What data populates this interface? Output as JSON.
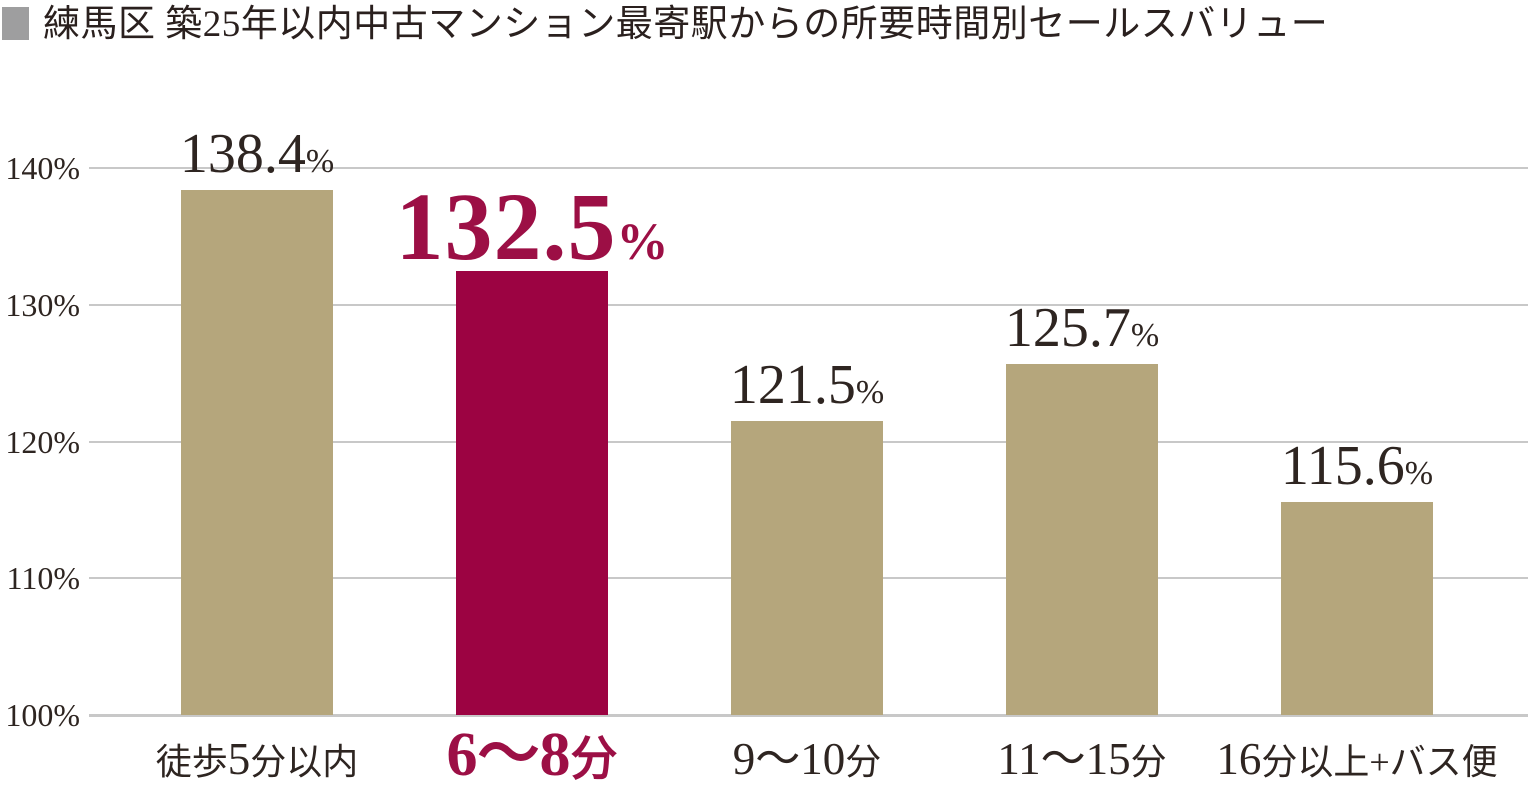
{
  "colors": {
    "bar_default": "#b5a67c",
    "bar_highlight": "#9c0342",
    "text_highlight": "#9c0f45",
    "text_dark": "#2e2521",
    "gridline": "#c8c8c8",
    "title_bullet": "#9e9e9f"
  },
  "chart_data": {
    "type": "bar",
    "title": "練馬区 築25年以内中古マンション最寄駅からの所要時間別セールスバリュー",
    "categories": [
      "徒歩5分以内",
      "6〜8分",
      "9〜10分",
      "11〜15分",
      "16分以上+バス便"
    ],
    "values": [
      138.4,
      132.5,
      121.5,
      125.7,
      115.6
    ],
    "value_labels": [
      "138.4",
      "132.5",
      "121.5",
      "125.7",
      "115.6"
    ],
    "unit": "%",
    "highlight_index": 1,
    "highlight_category": "6〜8分",
    "highlight_value": "132.5",
    "yticks": [
      100,
      110,
      120,
      130,
      140
    ],
    "ytick_labels": [
      "100%",
      "110%",
      "120%",
      "130%",
      "140%"
    ],
    "ylim": [
      100,
      140
    ],
    "grid": true,
    "legend": "none",
    "xlabel": "",
    "ylabel": ""
  }
}
